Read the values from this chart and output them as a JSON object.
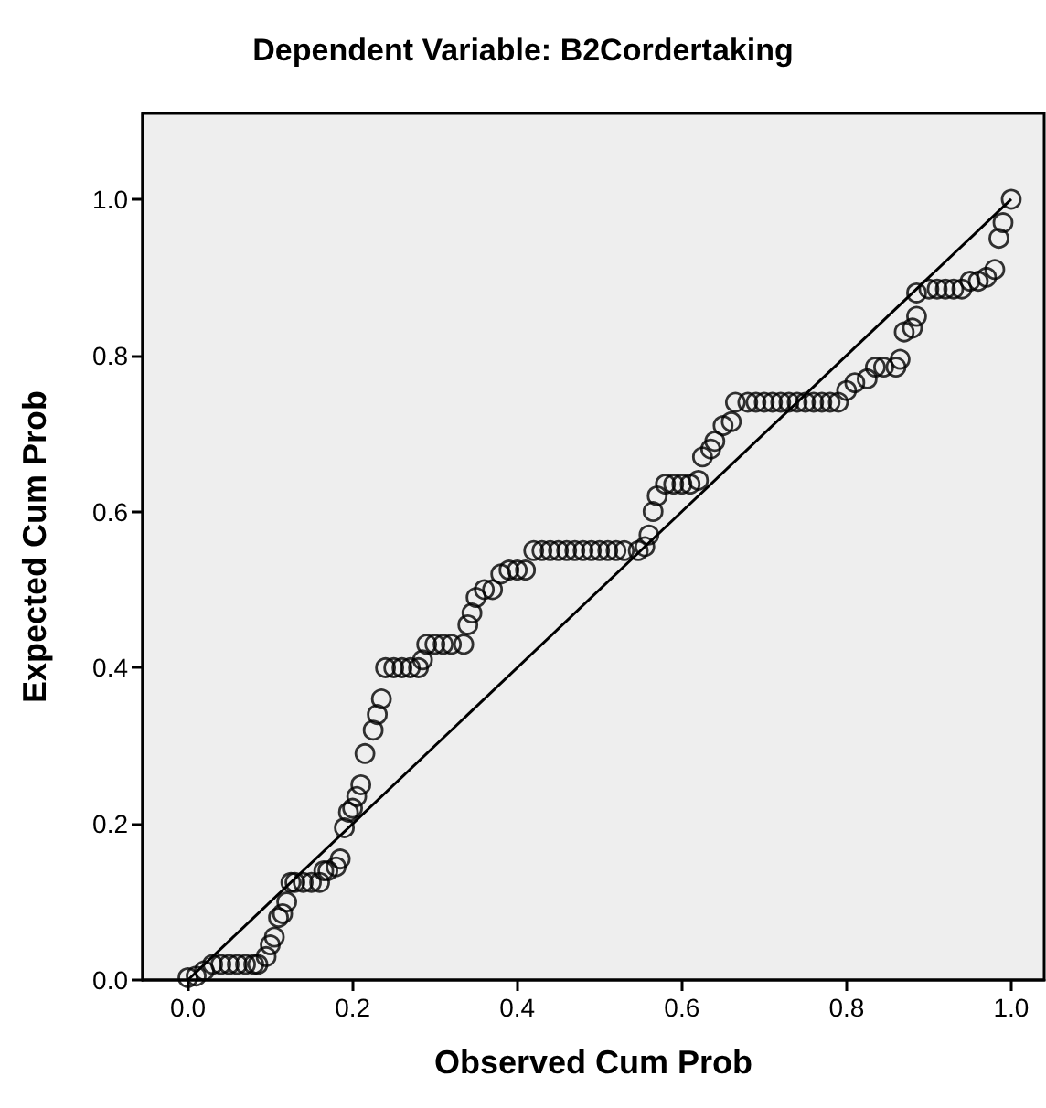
{
  "chart_data": {
    "type": "scatter",
    "title": "Dependent Variable: B2Cordertaking",
    "xlabel": "Observed Cum Prob",
    "ylabel": "Expected Cum Prob",
    "xlim": [
      -0.055,
      1.04
    ],
    "ylim": [
      0,
      1.11
    ],
    "xticks": [
      {
        "value": 0,
        "label": "0.0"
      },
      {
        "value": 0.2,
        "label": "0.2"
      },
      {
        "value": 0.4,
        "label": "0.4"
      },
      {
        "value": 0.6,
        "label": "0.6"
      },
      {
        "value": 0.8,
        "label": "0.8"
      },
      {
        "value": 1,
        "label": "1.0"
      }
    ],
    "yticks": [
      {
        "value": 0,
        "label": "0.0"
      },
      {
        "value": 0.2,
        "label": "0.2"
      },
      {
        "value": 0.4,
        "label": "0.4"
      },
      {
        "value": 0.6,
        "label": "0.6"
      },
      {
        "value": 0.8,
        "label": "0.8"
      },
      {
        "value": 1,
        "label": "1.0"
      }
    ],
    "grid": false,
    "marker": "circle",
    "series": [
      {
        "color": "#000000",
        "x": [
          0,
          0.01,
          0.02,
          0.03,
          0.04,
          0.05,
          0.06,
          0.07,
          0.08,
          0.085,
          0.095,
          0.1,
          0.105,
          0.11,
          0.115,
          0.12,
          0.125,
          0.13,
          0.14,
          0.15,
          0.16,
          0.165,
          0.17,
          0.18,
          0.185,
          0.19,
          0.195,
          0.2,
          0.205,
          0.21,
          0.215,
          0.225,
          0.23,
          0.235,
          0.24,
          0.25,
          0.26,
          0.27,
          0.28,
          0.285,
          0.29,
          0.3,
          0.31,
          0.32,
          0.335,
          0.34,
          0.345,
          0.35,
          0.36,
          0.37,
          0.38,
          0.39,
          0.4,
          0.41,
          0.42,
          0.43,
          0.44,
          0.45,
          0.46,
          0.47,
          0.48,
          0.49,
          0.5,
          0.51,
          0.52,
          0.53,
          0.547,
          0.555,
          0.56,
          0.565,
          0.57,
          0.58,
          0.59,
          0.6,
          0.61,
          0.62,
          0.625,
          0.635,
          0.64,
          0.65,
          0.66,
          0.665,
          0.68,
          0.69,
          0.7,
          0.71,
          0.72,
          0.73,
          0.74,
          0.75,
          0.76,
          0.77,
          0.78,
          0.79,
          0.8,
          0.81,
          0.825,
          0.835,
          0.845,
          0.86,
          0.865,
          0.87,
          0.88,
          0.885,
          0.885,
          0.9,
          0.91,
          0.92,
          0.93,
          0.94,
          0.95,
          0.96,
          0.97,
          0.98,
          0.985,
          0.99,
          1
        ],
        "values": [
          0.003,
          0.005,
          0.012,
          0.02,
          0.02,
          0.02,
          0.02,
          0.02,
          0.02,
          0.02,
          0.03,
          0.045,
          0.055,
          0.08,
          0.085,
          0.1,
          0.125,
          0.125,
          0.125,
          0.125,
          0.125,
          0.14,
          0.14,
          0.145,
          0.155,
          0.195,
          0.215,
          0.22,
          0.235,
          0.25,
          0.29,
          0.32,
          0.34,
          0.36,
          0.4,
          0.4,
          0.4,
          0.4,
          0.4,
          0.41,
          0.43,
          0.43,
          0.43,
          0.43,
          0.43,
          0.455,
          0.47,
          0.49,
          0.5,
          0.5,
          0.52,
          0.525,
          0.525,
          0.525,
          0.55,
          0.55,
          0.55,
          0.55,
          0.55,
          0.55,
          0.55,
          0.55,
          0.55,
          0.55,
          0.55,
          0.55,
          0.55,
          0.555,
          0.57,
          0.6,
          0.62,
          0.635,
          0.635,
          0.635,
          0.635,
          0.64,
          0.67,
          0.68,
          0.69,
          0.71,
          0.715,
          0.74,
          0.74,
          0.74,
          0.74,
          0.74,
          0.74,
          0.74,
          0.74,
          0.74,
          0.74,
          0.74,
          0.74,
          0.74,
          0.755,
          0.765,
          0.77,
          0.785,
          0.785,
          0.785,
          0.795,
          0.83,
          0.835,
          0.85,
          0.88,
          0.885,
          0.885,
          0.885,
          0.885,
          0.885,
          0.895,
          0.895,
          0.9,
          0.91,
          0.95,
          0.97,
          1.0
        ]
      },
      {
        "type": "line",
        "color": "#000000",
        "marker": "none",
        "line_style": "solid",
        "x": [
          0,
          1
        ],
        "values": [
          0,
          1
        ]
      }
    ]
  }
}
